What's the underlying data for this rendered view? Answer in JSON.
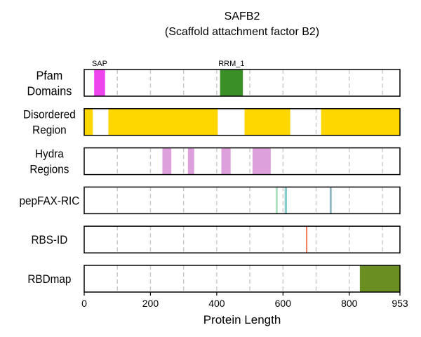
{
  "chart_data": {
    "type": "track",
    "title": "SAFB2",
    "subtitle": "(Scaffold attachment factor B2)",
    "xlabel": "Protein Length",
    "xlim": [
      0,
      953
    ],
    "xticks": [
      0,
      200,
      400,
      600,
      800,
      953
    ],
    "xtick_labels": [
      "0",
      "200",
      "400",
      "600",
      "800",
      "953"
    ],
    "grid_lines_x": [
      100,
      200,
      300,
      400,
      500,
      600,
      700,
      800,
      900
    ],
    "grid": "dashed vertical",
    "tracks": [
      {
        "id": "pfam",
        "label_lines": [
          "Pfam",
          "Domains"
        ],
        "segments": [
          {
            "start": 30,
            "end": 63,
            "color": "#ee44ee",
            "label": "SAP"
          },
          {
            "start": 410,
            "end": 479,
            "color": "#3a8f26",
            "label": "RRM_1"
          }
        ]
      },
      {
        "id": "disordered",
        "label_lines": [
          "Disordered",
          "Region"
        ],
        "segments": [
          {
            "start": 0,
            "end": 26,
            "color": "#ffd700"
          },
          {
            "start": 73,
            "end": 403,
            "color": "#ffd700"
          },
          {
            "start": 484,
            "end": 622,
            "color": "#ffd700"
          },
          {
            "start": 715,
            "end": 953,
            "color": "#ffd700"
          }
        ]
      },
      {
        "id": "hydra",
        "label_lines": [
          "Hydra",
          "Regions"
        ],
        "segments": [
          {
            "start": 236,
            "end": 263,
            "color": "#dda0dd"
          },
          {
            "start": 313,
            "end": 332,
            "color": "#dda0dd"
          },
          {
            "start": 414,
            "end": 442,
            "color": "#dda0dd"
          },
          {
            "start": 508,
            "end": 563,
            "color": "#dda0dd"
          }
        ]
      },
      {
        "id": "pepfax",
        "label_lines": [
          "pepFAX-RIC"
        ],
        "segments": [
          {
            "start": 578,
            "end": 584,
            "color": "#a8e0c0"
          },
          {
            "start": 605,
            "end": 612,
            "color": "#88cccc"
          },
          {
            "start": 741,
            "end": 747,
            "color": "#8fb6c0"
          }
        ]
      },
      {
        "id": "rbsid",
        "label_lines": [
          "RBS-ID"
        ],
        "segments": [
          {
            "start": 670,
            "end": 673,
            "color": "#e8501a"
          }
        ]
      },
      {
        "id": "rbdmap",
        "label_lines": [
          "RBDmap"
        ],
        "segments": [
          {
            "start": 832,
            "end": 953,
            "color": "#6b8e23"
          }
        ]
      }
    ]
  }
}
